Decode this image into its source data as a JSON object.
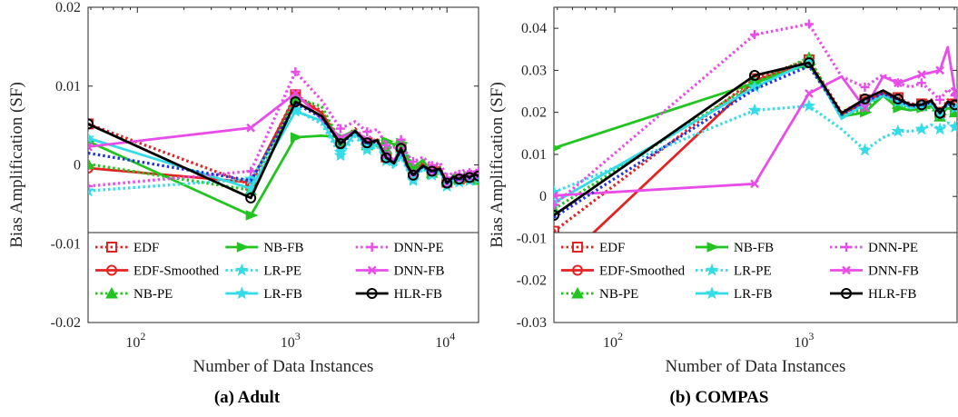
{
  "chart_data": [
    {
      "type": "line",
      "caption": "(a) Adult",
      "xlabel": "Number of Data Instances",
      "ylabel": "Bias Amplification (SF)",
      "xscale": "log",
      "xlim": [
        48,
        16000
      ],
      "ylim": [
        -0.02,
        0.02
      ],
      "yticks": [
        {
          "value": -0.02,
          "label": "-0.02"
        },
        {
          "value": -0.01,
          "label": "-0.01"
        },
        {
          "value": 0,
          "label": "0"
        },
        {
          "value": 0.01,
          "label": "0.01"
        },
        {
          "value": 0.02,
          "label": "0.02"
        }
      ],
      "xticks": [
        {
          "value": 100,
          "base": "10",
          "exp": "2"
        },
        {
          "value": 1000,
          "base": "10",
          "exp": "3"
        },
        {
          "value": 10000,
          "base": "10",
          "exp": "4"
        }
      ],
      "legend_location": "bottom-inside",
      "grid": false,
      "series": [
        {
          "name": "EDF",
          "color": "#e52222",
          "dash": "dot",
          "marker": "square",
          "x": [
            48,
            540,
            1050,
            1550,
            2050,
            2550,
            3050,
            3550,
            4050,
            4550,
            5050,
            5550,
            6050,
            7000,
            8000,
            9000,
            10000,
            11000,
            12000,
            13000,
            14000,
            15000,
            16000
          ],
          "y": [
            0.0052,
            -0.0025,
            0.0089,
            0.0068,
            0.003,
            0.0046,
            0.0028,
            0.0033,
            0.001,
            0.0004,
            0.0022,
            0.0002,
            -0.001,
            0.0003,
            -0.0006,
            -0.0003,
            -0.0022,
            -0.0015,
            -0.0018,
            -0.0013,
            -0.0016,
            -0.0012,
            -0.0014
          ]
        },
        {
          "name": "EDF-Smoothed",
          "color": "#e52222",
          "dash": "solid",
          "marker": "circle",
          "x": [
            48,
            540,
            1050,
            1550,
            2050,
            2550,
            3050,
            3550,
            4050,
            4550,
            5050,
            5550,
            6050,
            7000,
            8000,
            9000,
            10000,
            11000,
            12000,
            13000,
            14000,
            15000,
            16000
          ],
          "y": [
            -0.0004,
            -0.0022,
            0.0087,
            0.0066,
            0.0029,
            0.0044,
            0.0027,
            0.0032,
            0.0009,
            0.0003,
            0.0021,
            0.0001,
            -0.0011,
            0.0002,
            -0.0007,
            -0.0004,
            -0.0023,
            -0.0016,
            -0.0019,
            -0.0014,
            -0.0017,
            -0.0013,
            -0.0015
          ]
        },
        {
          "name": "NB-PE",
          "color": "#22c41f",
          "dash": "dot",
          "marker": "triangle",
          "x": [
            48,
            540,
            1050,
            1550,
            2050,
            2550,
            3050,
            3550,
            4050,
            4550,
            5050,
            5550,
            6050,
            7000,
            8000,
            9000,
            10000,
            11000,
            12000,
            13000,
            14000,
            15000,
            16000
          ],
          "y": [
            0.0001,
            -0.0032,
            0.0085,
            0.0074,
            0.003,
            0.0044,
            0.0025,
            0.0033,
            0.002,
            0.0024,
            0.0025,
            0.0013,
            -0.0004,
            0.0004,
            -0.001,
            -0.0005,
            -0.002,
            -0.0013,
            -0.0017,
            -0.001,
            -0.0012,
            -0.0018,
            -0.0019
          ]
        },
        {
          "name": "NB-FB",
          "color": "#22c41f",
          "dash": "solid",
          "marker": "arrow",
          "x": [
            48,
            540,
            1050,
            1550,
            2050,
            2550,
            3050,
            3550,
            4050,
            4550,
            5050,
            5550,
            6050,
            7000,
            8000,
            9000,
            10000,
            11000,
            12000,
            13000,
            14000,
            15000,
            16000
          ],
          "y": [
            0.003,
            -0.0064,
            0.0035,
            0.0037,
            0.0035,
            0.0044,
            0.0028,
            0.0024,
            0.003,
            0.0026,
            0.0028,
            0.0009,
            -0.0003,
            0.0006,
            -0.0012,
            -0.0004,
            -0.0022,
            -0.0014,
            -0.0019,
            -0.0011,
            -0.0015,
            -0.0012,
            -0.0014
          ]
        },
        {
          "name": "LR-PE",
          "color": "#33dce6",
          "dash": "dot",
          "marker": "star",
          "x": [
            48,
            540,
            1050,
            1550,
            2050,
            2550,
            3050,
            3550,
            4050,
            4550,
            5050,
            5550,
            6050,
            7000,
            8000,
            9000,
            10000,
            11000,
            12000,
            13000,
            14000,
            15000,
            16000
          ],
          "y": [
            -0.0033,
            -0.0018,
            0.007,
            0.0052,
            0.0012,
            0.0036,
            0.0019,
            0.0023,
            0.0005,
            -0.0004,
            0.0011,
            -0.0007,
            -0.002,
            -0.0005,
            -0.0013,
            -0.0009,
            -0.0027,
            -0.0019,
            -0.0022,
            -0.0017,
            -0.002,
            -0.0016,
            -0.0018
          ]
        },
        {
          "name": "LR-FB",
          "color": "#33dce6",
          "dash": "solid",
          "marker": "star",
          "x": [
            48,
            540,
            1050,
            1550,
            2050,
            2550,
            3050,
            3550,
            4050,
            4550,
            5050,
            5550,
            6050,
            7000,
            8000,
            9000,
            10000,
            11000,
            12000,
            13000,
            14000,
            15000,
            16000
          ],
          "y": [
            0.0034,
            -0.003,
            0.0068,
            0.0056,
            0.0016,
            0.004,
            0.0022,
            0.0026,
            0.0007,
            -0.0002,
            0.0014,
            -0.0005,
            -0.0018,
            -0.0003,
            -0.0012,
            -0.0008,
            -0.0026,
            -0.0018,
            -0.0021,
            -0.0016,
            -0.0019,
            -0.0015,
            -0.0017
          ]
        },
        {
          "name": "DNN-PE",
          "color": "#e94de9",
          "dash": "dot",
          "marker": "plus",
          "x": [
            48,
            540,
            1050,
            1550,
            2050,
            2550,
            3050,
            3550,
            4050,
            4550,
            5050,
            5550,
            6050,
            7000,
            8000,
            9000,
            10000,
            11000,
            12000,
            13000,
            14000,
            15000,
            16000
          ],
          "y": [
            -0.0027,
            -0.0008,
            0.0118,
            0.0082,
            0.0046,
            0.0055,
            0.0042,
            0.0045,
            0.0025,
            0.002,
            0.0032,
            0.0013,
            0.0004,
            0.001,
            -0.0001,
            0.0003,
            -0.0016,
            -0.0009,
            -0.0012,
            -0.0006,
            -0.001,
            -0.0006,
            -0.0008
          ]
        },
        {
          "name": "DNN-FB",
          "color": "#e94de9",
          "dash": "solid",
          "marker": "x",
          "x": [
            48,
            540,
            1050,
            1550,
            2050,
            2550,
            3050,
            3550,
            4050,
            4550,
            5050,
            5550,
            6050,
            7000,
            8000,
            9000,
            10000,
            11000,
            12000,
            13000,
            14000,
            15000,
            16000
          ],
          "y": [
            0.0023,
            0.0047,
            0.0091,
            0.0058,
            0.0034,
            0.0043,
            0.0032,
            0.003,
            0.0013,
            0.0006,
            0.0019,
            -0.0002,
            -0.0011,
            -0.0001,
            -0.0009,
            -0.0005,
            -0.0024,
            -0.0015,
            -0.0018,
            -0.0013,
            -0.0016,
            -0.0012,
            -0.0014
          ]
        },
        {
          "name": "",
          "color": "#1f35e0",
          "dash": "dot",
          "marker": "none",
          "x": [
            48,
            540,
            1050,
            1550,
            2050,
            2550,
            3050,
            3550,
            4050,
            4550,
            5050,
            5550,
            6050,
            7000,
            8000,
            9000,
            10000,
            11000,
            12000,
            13000,
            14000,
            15000,
            16000
          ],
          "y": [
            0.0015,
            -0.002,
            0.0078,
            0.006,
            0.0026,
            0.0042,
            0.0026,
            0.003,
            0.001,
            0.0003,
            0.0018,
            -0.0002,
            -0.0014,
            -0.0002,
            -0.001,
            -0.0006,
            -0.0024,
            -0.0016,
            -0.002,
            -0.0014,
            -0.0017,
            -0.0013,
            -0.0015
          ]
        },
        {
          "name": "HLR-FB",
          "color": "#000000",
          "dash": "solid",
          "marker": "circle",
          "x": [
            48,
            540,
            1050,
            1550,
            2050,
            2550,
            3050,
            3550,
            4050,
            4550,
            5050,
            5550,
            6050,
            7000,
            8000,
            9000,
            10000,
            11000,
            12000,
            13000,
            14000,
            15000,
            16000
          ],
          "y": [
            0.0052,
            -0.0042,
            0.008,
            0.0062,
            0.0027,
            0.0043,
            0.0028,
            0.0031,
            0.0009,
            0.0002,
            0.0021,
            -0.0001,
            -0.0013,
            -0.0001,
            -0.0008,
            -0.0005,
            -0.0023,
            -0.0015,
            -0.0018,
            -0.0013,
            -0.0016,
            -0.0012,
            -0.0014
          ]
        }
      ]
    },
    {
      "type": "line",
      "caption": "(b) COMPAS",
      "xlabel": "Number of Data Instances",
      "ylabel": "Bias Amplification (SF)",
      "xscale": "log",
      "xlim": [
        48,
        6200
      ],
      "ylim": [
        -0.03,
        0.045
      ],
      "yticks": [
        {
          "value": -0.03,
          "label": "-0.03"
        },
        {
          "value": -0.02,
          "label": "-0.02"
        },
        {
          "value": -0.01,
          "label": "-0.01"
        },
        {
          "value": 0,
          "label": "0"
        },
        {
          "value": 0.01,
          "label": "0.01"
        },
        {
          "value": 0.02,
          "label": "0.02"
        },
        {
          "value": 0.03,
          "label": "0.03"
        },
        {
          "value": 0.04,
          "label": "0.04"
        }
      ],
      "xticks": [
        {
          "value": 100,
          "base": "10",
          "exp": "2"
        },
        {
          "value": 1000,
          "base": "10",
          "exp": "3"
        }
      ],
      "legend_location": "bottom-inside",
      "grid": false,
      "series": [
        {
          "name": "EDF",
          "color": "#e52222",
          "dash": "dot",
          "marker": "square",
          "x": [
            48,
            540,
            1040,
            1540,
            2040,
            2540,
            3040,
            3540,
            4040,
            4540,
            5040,
            5540,
            6040
          ],
          "y": [
            -0.0083,
            0.028,
            0.0325,
            0.02,
            0.023,
            0.025,
            0.0235,
            0.022,
            0.022,
            0.023,
            0.02,
            0.023,
            0.022
          ]
        },
        {
          "name": "EDF-Smoothed",
          "color": "#e52222",
          "dash": "solid",
          "marker": "circle",
          "x": [
            48,
            540,
            1040,
            1540,
            2040,
            2540,
            3040,
            3540,
            4040,
            4540,
            5040,
            5540,
            6040
          ],
          "y": [
            -0.0175,
            0.0275,
            0.032,
            0.0195,
            0.0225,
            0.0245,
            0.023,
            0.0215,
            0.0215,
            0.0225,
            0.0195,
            0.0225,
            0.0215
          ]
        },
        {
          "name": "NB-PE",
          "color": "#22c41f",
          "dash": "dot",
          "marker": "triangle",
          "x": [
            48,
            540,
            1040,
            1540,
            2040,
            2540,
            3040,
            3540,
            4040,
            4540,
            5040,
            5540,
            6040
          ],
          "y": [
            -0.003,
            0.027,
            0.033,
            0.019,
            0.021,
            0.024,
            0.022,
            0.021,
            0.0215,
            0.021,
            0.019,
            0.0215,
            0.02
          ]
        },
        {
          "name": "NB-FB",
          "color": "#22c41f",
          "dash": "solid",
          "marker": "arrow",
          "x": [
            48,
            540,
            1040,
            1540,
            2040,
            2540,
            3040,
            3540,
            4040,
            4540,
            5040,
            5540,
            6040
          ],
          "y": [
            0.0115,
            0.027,
            0.0315,
            0.019,
            0.02,
            0.024,
            0.021,
            0.0205,
            0.021,
            0.0215,
            0.0195,
            0.021,
            0.0205
          ]
        },
        {
          "name": "LR-PE",
          "color": "#33dce6",
          "dash": "dot",
          "marker": "star",
          "x": [
            48,
            540,
            1040,
            1540,
            2040,
            2540,
            3040,
            3540,
            4040,
            4540,
            5040,
            5540,
            6040
          ],
          "y": [
            0.001,
            0.0205,
            0.0215,
            0.016,
            0.011,
            0.014,
            0.0155,
            0.0155,
            0.016,
            0.017,
            0.016,
            0.0175,
            0.0165
          ]
        },
        {
          "name": "LR-FB",
          "color": "#33dce6",
          "dash": "solid",
          "marker": "star",
          "x": [
            48,
            540,
            1040,
            1540,
            2040,
            2540,
            3040,
            3540,
            4040,
            4540,
            5040,
            5540,
            6040
          ],
          "y": [
            -0.0015,
            0.026,
            0.032,
            0.0185,
            0.022,
            0.024,
            0.0225,
            0.021,
            0.0215,
            0.022,
            0.0195,
            0.022,
            0.021
          ]
        },
        {
          "name": "DNN-PE",
          "color": "#e94de9",
          "dash": "dot",
          "marker": "plus",
          "x": [
            48,
            540,
            1040,
            1540,
            2040,
            2540,
            3040,
            3540,
            4040,
            4540,
            5040,
            5540,
            6040
          ],
          "y": [
            -0.002,
            0.0385,
            0.041,
            0.0285,
            0.026,
            0.029,
            0.027,
            0.026,
            0.027,
            0.025,
            0.023,
            0.0255,
            0.024
          ]
        },
        {
          "name": "DNN-FB",
          "color": "#e94de9",
          "dash": "solid",
          "marker": "x",
          "x": [
            48,
            540,
            1040,
            1540,
            2040,
            2540,
            3040,
            3540,
            4040,
            4540,
            5040,
            5540,
            6040
          ],
          "y": [
            0.0002,
            0.003,
            0.0245,
            0.0285,
            0.021,
            0.0285,
            0.027,
            0.028,
            0.029,
            0.0295,
            0.03,
            0.0355,
            0.025
          ]
        },
        {
          "name": "",
          "color": "#1f35e0",
          "dash": "dot",
          "marker": "none",
          "x": [
            48,
            540,
            1040,
            1540,
            2040,
            2540,
            3040,
            3540,
            4040,
            4540,
            5040,
            5540,
            6040
          ],
          "y": [
            -0.005,
            0.0255,
            0.031,
            0.0195,
            0.0225,
            0.0245,
            0.023,
            0.0215,
            0.0215,
            0.0225,
            0.02,
            0.022,
            0.0215
          ]
        },
        {
          "name": "HLR-FB",
          "color": "#000000",
          "dash": "solid",
          "marker": "circle",
          "x": [
            48,
            540,
            1040,
            1540,
            2040,
            2540,
            3040,
            3540,
            4040,
            4540,
            5040,
            5540,
            6040
          ],
          "y": [
            -0.0045,
            0.0288,
            0.0318,
            0.0198,
            0.0232,
            0.0252,
            0.0232,
            0.0218,
            0.0218,
            0.0228,
            0.0198,
            0.0225,
            0.0218
          ]
        }
      ]
    }
  ]
}
